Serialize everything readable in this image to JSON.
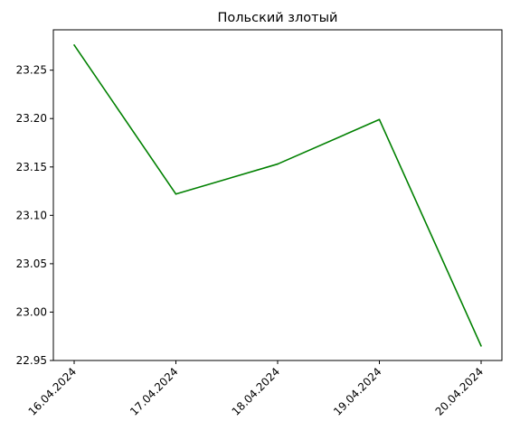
{
  "chart_data": {
    "type": "line",
    "title": "Польский злотый",
    "xlabel": "",
    "ylabel": "",
    "x": [
      "16.04.2024",
      "17.04.2024",
      "18.04.2024",
      "19.04.2024",
      "20.04.2024"
    ],
    "series": [
      {
        "values": [
          23.276,
          23.122,
          23.153,
          23.199,
          22.965
        ],
        "color": "#008000"
      }
    ],
    "y_ticks": [
      "22.95",
      "23.00",
      "23.05",
      "23.10",
      "23.15",
      "23.20",
      "23.25"
    ],
    "ylim": [
      22.95,
      23.2917
    ],
    "grid": false,
    "legend": "none",
    "x_tick_rotation": 45
  }
}
